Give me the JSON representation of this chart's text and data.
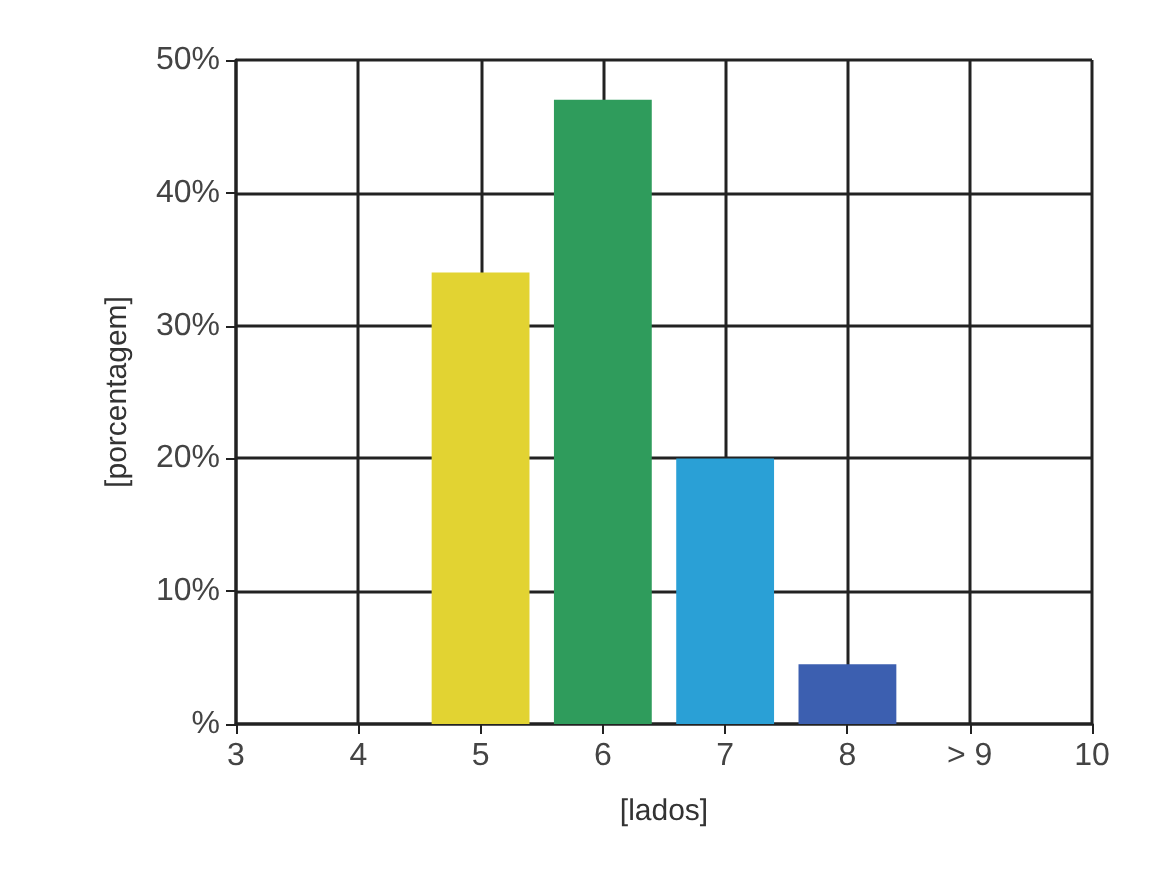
{
  "chart_data": {
    "type": "bar",
    "xlabel": "[lados]",
    "ylabel": "[porcentagem]",
    "x": [
      5,
      6,
      7,
      8
    ],
    "values": [
      34,
      47,
      20,
      4.5
    ],
    "colors": [
      "#e2d332",
      "#2f9c5c",
      "#2aa0d6",
      "#3c5fb0"
    ],
    "xlim": [
      3,
      10
    ],
    "xticks": [
      3,
      4,
      5,
      6,
      7,
      8,
      {
        "value": 9,
        "label": "> 9"
      },
      10
    ],
    "ylim": [
      0,
      50
    ],
    "yticks": [
      {
        "value": 0,
        "label": "%"
      },
      {
        "value": 10,
        "label": "10%"
      },
      {
        "value": 20,
        "label": "20%"
      },
      {
        "value": 30,
        "label": "30%"
      },
      {
        "value": 40,
        "label": "40%"
      },
      {
        "value": 50,
        "label": "50%"
      }
    ],
    "grid": true
  }
}
